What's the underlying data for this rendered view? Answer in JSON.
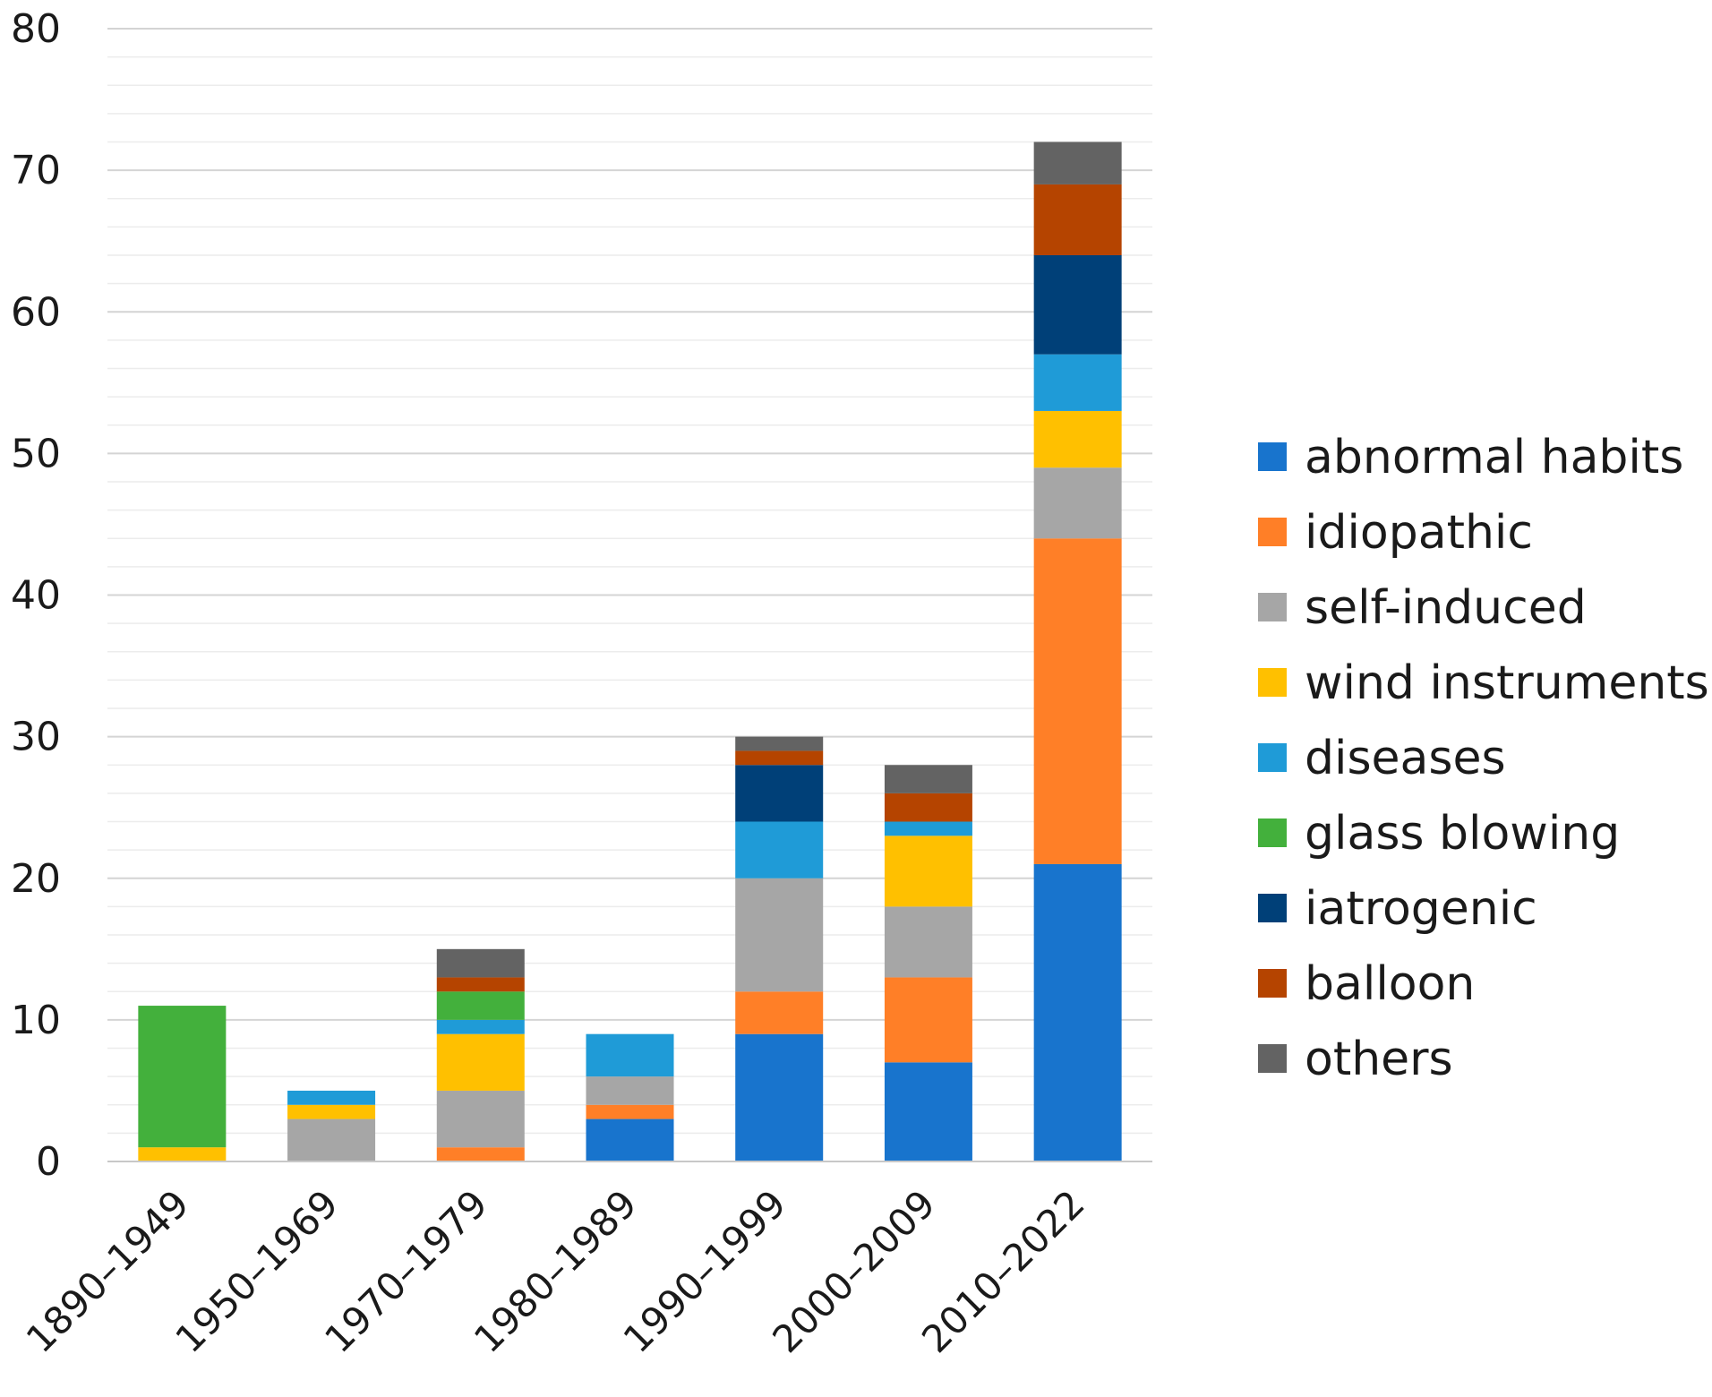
{
  "chart_data": {
    "type": "bar",
    "stacked": true,
    "title": "",
    "xlabel": "",
    "ylabel": "",
    "ylim": [
      0,
      80
    ],
    "yticks": [
      0,
      10,
      20,
      30,
      40,
      50,
      60,
      70,
      80
    ],
    "grid": true,
    "legend_position": "right",
    "categories": [
      "1890–1949",
      "1950–1969",
      "1970–1979",
      "1980–1989",
      "1990–1999",
      "2000–2009",
      "2010–2022"
    ],
    "series": [
      {
        "name": "abnormal habits",
        "color": "#1874CD",
        "values": [
          0,
          0,
          0,
          3,
          9,
          7,
          21
        ]
      },
      {
        "name": "idiopathic",
        "color": "#FF7F27",
        "values": [
          0,
          0,
          1,
          1,
          3,
          6,
          23
        ]
      },
      {
        "name": "self-induced",
        "color": "#A6A6A6",
        "values": [
          0,
          3,
          4,
          2,
          8,
          5,
          5
        ]
      },
      {
        "name": "wind instruments",
        "color": "#FFC000",
        "values": [
          1,
          1,
          4,
          0,
          0,
          5,
          4
        ]
      },
      {
        "name": "diseases",
        "color": "#1F9BD7",
        "values": [
          0,
          1,
          1,
          3,
          4,
          1,
          4
        ]
      },
      {
        "name": "glass blowing",
        "color": "#43B03C",
        "values": [
          10,
          0,
          2,
          0,
          0,
          0,
          0
        ]
      },
      {
        "name": "iatrogenic",
        "color": "#004078",
        "values": [
          0,
          0,
          0,
          0,
          4,
          0,
          7
        ]
      },
      {
        "name": "balloon",
        "color": "#B54400",
        "values": [
          0,
          0,
          1,
          0,
          1,
          2,
          5
        ]
      },
      {
        "name": "others",
        "color": "#636363",
        "values": [
          0,
          0,
          2,
          0,
          1,
          2,
          3
        ]
      }
    ]
  }
}
